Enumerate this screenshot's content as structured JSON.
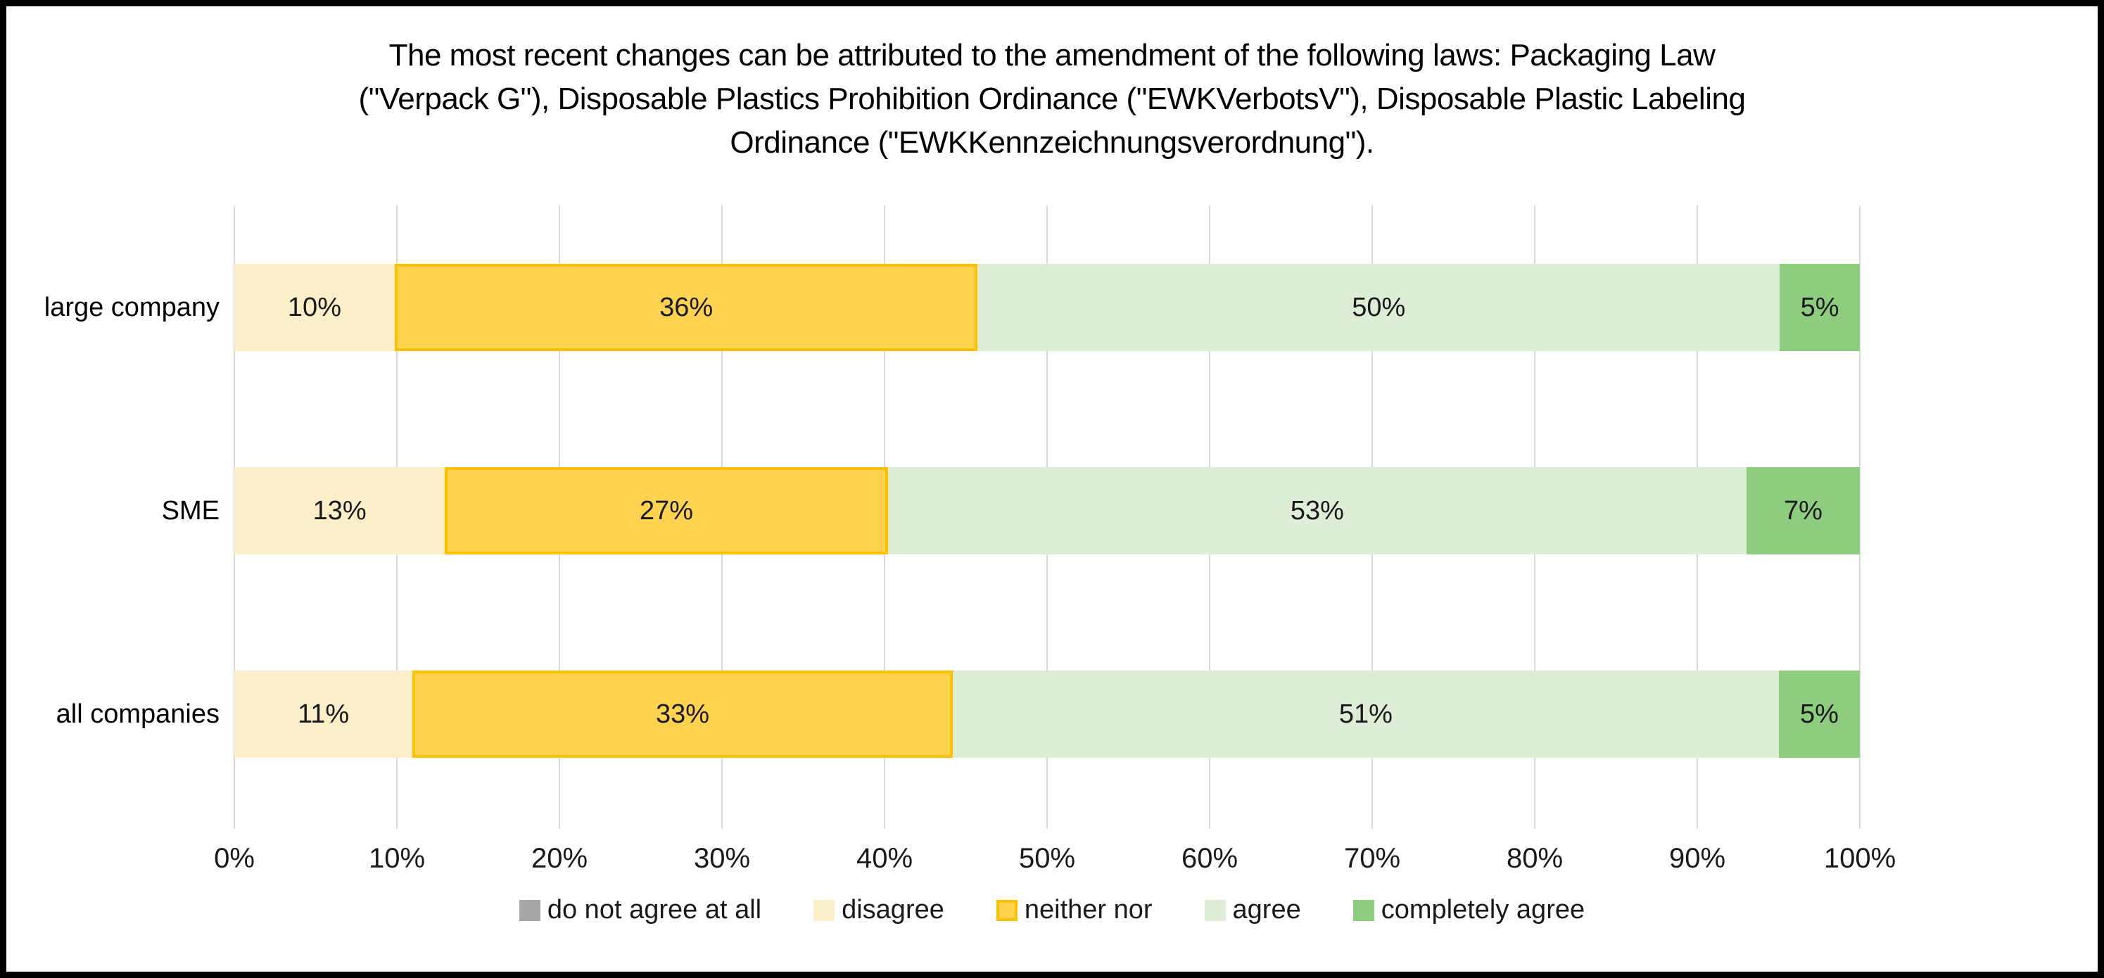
{
  "chart_data": {
    "type": "bar",
    "orientation": "horizontal-stacked",
    "title": "The most recent changes can be attributed to the amendment of the following laws: Packaging Law (\"Verpack G\"), Disposable Plastics Prohibition Ordinance (\"EWKVerbotsV\"), Disposable Plastic Labeling Ordinance (\"EWKKennzeichnungsverordnung\").",
    "title_lines": [
      "The most recent changes can be attributed to the amendment of the following laws: Packaging Law",
      "(\"Verpack G\"), Disposable Plastics Prohibition Ordinance (\"EWKVerbotsV\"), Disposable Plastic Labeling",
      "Ordinance (\"EWKKennzeichnungsverordnung\")."
    ],
    "categories": [
      "large company",
      "SME",
      "all companies"
    ],
    "series": [
      {
        "name": "do not agree at all",
        "color": "#A7A7A7",
        "values": [
          0,
          0,
          0
        ]
      },
      {
        "name": "disagree",
        "color": "#FBEEC9",
        "values": [
          10,
          13,
          11
        ]
      },
      {
        "name": "neither nor",
        "color": "#FFD34F",
        "border_color": "#FFC000",
        "values": [
          36,
          27,
          33
        ]
      },
      {
        "name": "agree",
        "color": "#DEEDD6",
        "values": [
          50,
          53,
          51
        ]
      },
      {
        "name": "completely agree",
        "color": "#8ECC7E",
        "values": [
          5,
          7,
          5
        ]
      }
    ],
    "data_label_suffix": "%",
    "x_ticks": [
      "0%",
      "10%",
      "20%",
      "30%",
      "40%",
      "50%",
      "60%",
      "70%",
      "80%",
      "90%",
      "100%"
    ],
    "xlim": [
      0,
      100
    ],
    "grid": "vertical",
    "legend_position": "bottom",
    "colors": {
      "gridline": "#D9D9D9",
      "frame_border": "#000000",
      "background": "#FFFFFF",
      "label_text": "#1A1A1A"
    }
  }
}
